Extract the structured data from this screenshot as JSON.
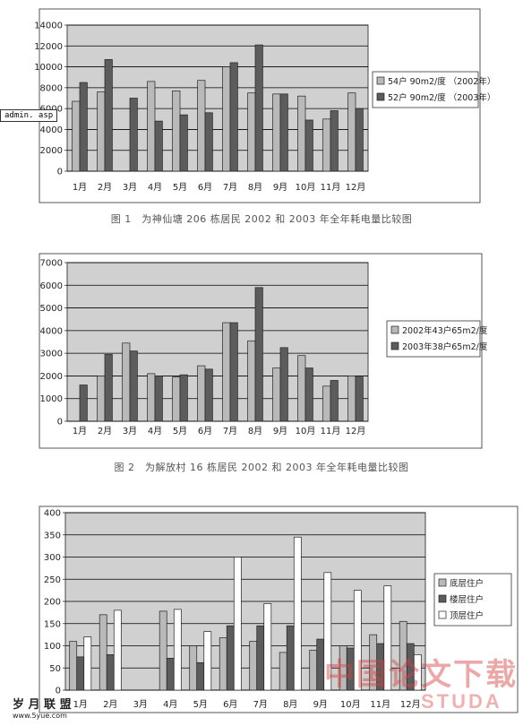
{
  "captions": {
    "fig1": "图 1　为神仙塘 206 栋居民 2002 和 2003 年全年耗电量比较图",
    "fig2": "图 2　为解放村 16 栋居民 2002 和 2003 年全年耗电量比较图"
  },
  "watermarks": {
    "admin": "admin. asp",
    "logo_left": "岁 月 联 盟",
    "site_left": "www.5yue.com",
    "logo_right": "中国论文下载",
    "site_right": "STUDA"
  },
  "colors": {
    "light_bar": "#b9b9b9",
    "dark_bar": "#5c5c5c",
    "white_bar": "#ffffff",
    "plot_bg": "#d0d0d0",
    "grid": "#000000",
    "watermark_red": "#d64040"
  },
  "chart_data": [
    {
      "type": "bar",
      "categories": [
        "1月",
        "2月",
        "3月",
        "4月",
        "5月",
        "6月",
        "7月",
        "8月",
        "9月",
        "10月",
        "11月",
        "12月"
      ],
      "ylim": [
        0,
        14000
      ],
      "yticks": [
        "0",
        "2000",
        "4000",
        "6000",
        "8000",
        "10000",
        "12000",
        "14000"
      ],
      "grid": true,
      "legend_position": "right",
      "series": [
        {
          "name": "54户 90m2/度 （2002年）",
          "color_key": "light_bar",
          "values": [
            6700,
            7600,
            null,
            8600,
            7700,
            8700,
            10000,
            7500,
            7400,
            7200,
            5000,
            7500
          ]
        },
        {
          "name": "52户 90m2/度 （2003年）",
          "color_key": "dark_bar",
          "values": [
            8500,
            10700,
            7000,
            4800,
            5400,
            5600,
            10400,
            12100,
            7400,
            4900,
            5800,
            6000
          ]
        }
      ]
    },
    {
      "type": "bar",
      "categories": [
        "1月",
        "2月",
        "3月",
        "4月",
        "5月",
        "6月",
        "7月",
        "8月",
        "9月",
        "10月",
        "11月",
        "12月"
      ],
      "ylim": [
        0,
        7000
      ],
      "yticks": [
        "0",
        "1000",
        "2000",
        "3000",
        "4000",
        "5000",
        "6000",
        "7000"
      ],
      "grid": true,
      "legend_position": "right",
      "series": [
        {
          "name": "2002年43户65m2/度",
          "color_key": "light_bar",
          "values": [
            null,
            2000,
            3450,
            2100,
            1950,
            2450,
            4350,
            3550,
            2350,
            2900,
            1550,
            2000
          ]
        },
        {
          "name": "2003年38户65m2/度",
          "color_key": "dark_bar",
          "values": [
            1600,
            2950,
            3100,
            2000,
            2050,
            2300,
            4350,
            5900,
            3250,
            2350,
            1800,
            1950
          ]
        }
      ]
    },
    {
      "type": "bar",
      "categories": [
        "1月",
        "2月",
        "3月",
        "4月",
        "5月",
        "6月",
        "7月",
        "8月",
        "9月",
        "10月",
        "11月",
        "12月"
      ],
      "ylim": [
        0,
        400
      ],
      "yticks": [
        "0",
        "50",
        "100",
        "150",
        "200",
        "250",
        "300",
        "350",
        "400"
      ],
      "grid": true,
      "legend_position": "right",
      "series": [
        {
          "name": "底层住户",
          "color_key": "light_bar",
          "values": [
            110,
            170,
            null,
            178,
            100,
            118,
            110,
            85,
            90,
            100,
            125,
            155
          ]
        },
        {
          "name": "楼层住户",
          "color_key": "dark_bar",
          "values": [
            75,
            80,
            null,
            72,
            62,
            145,
            145,
            145,
            115,
            95,
            105,
            105
          ]
        },
        {
          "name": "顶层住户",
          "color_key": "white_bar",
          "values": [
            120,
            180,
            null,
            182,
            132,
            300,
            195,
            345,
            265,
            225,
            235,
            80
          ]
        }
      ]
    }
  ]
}
